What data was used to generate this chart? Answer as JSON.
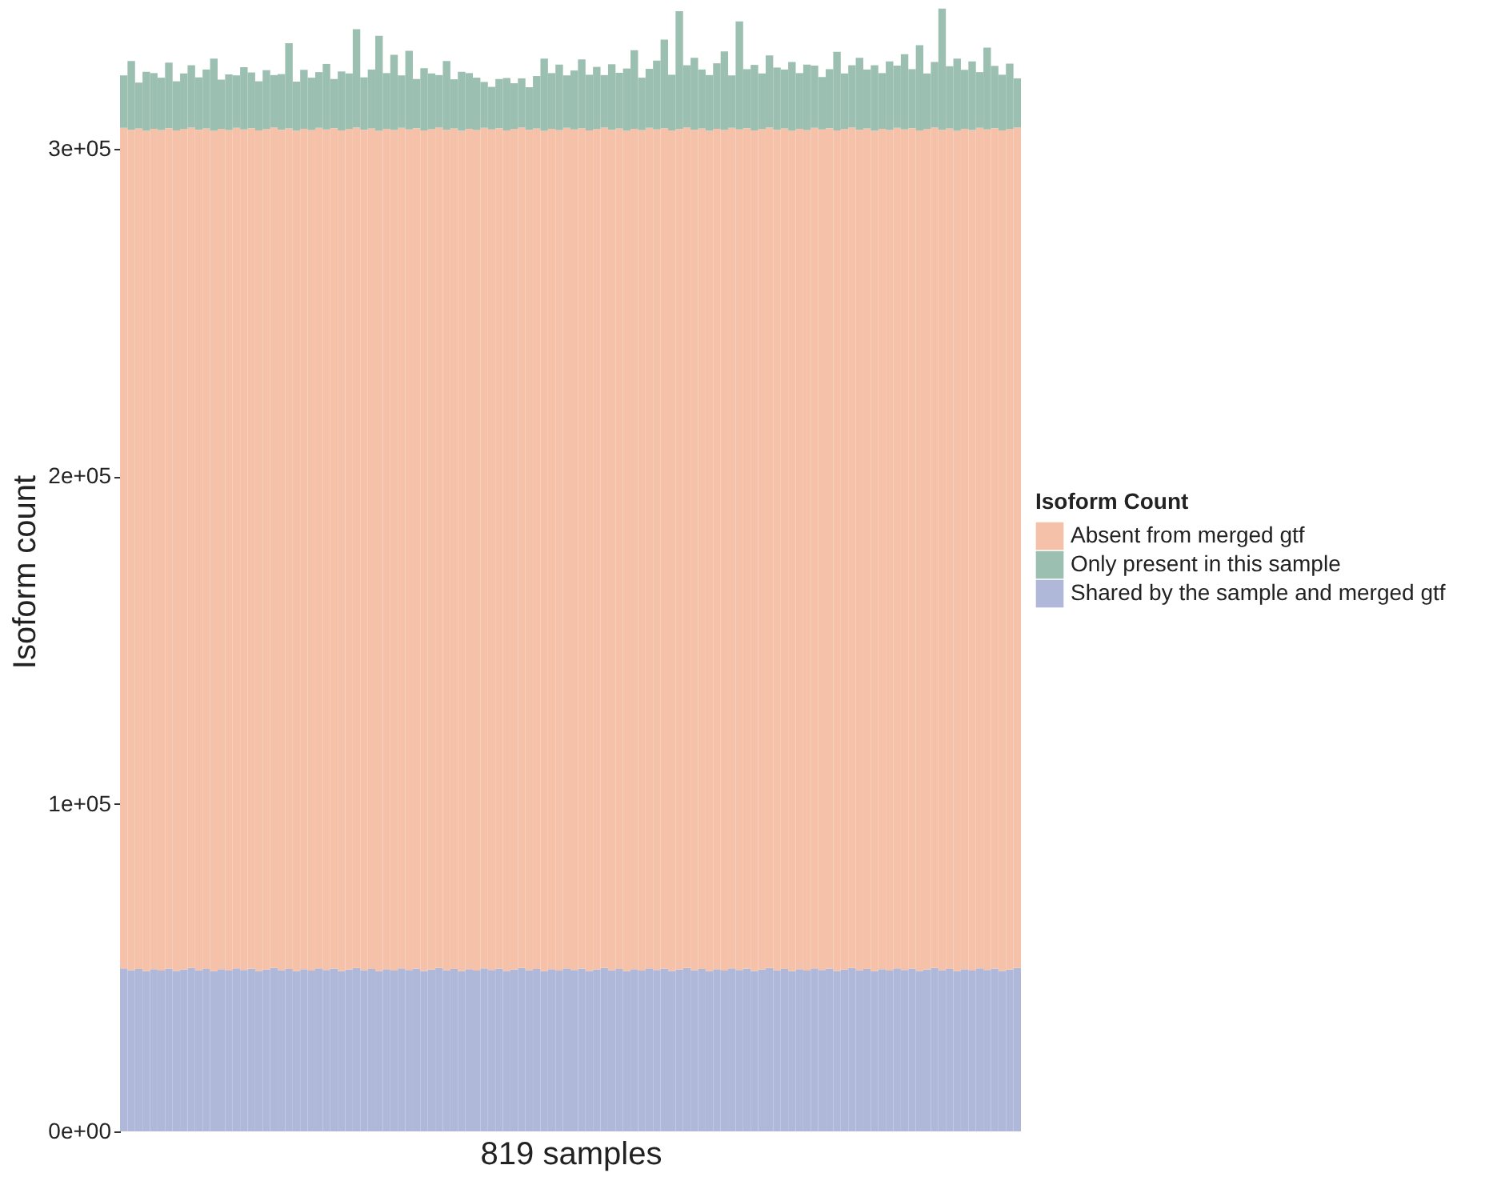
{
  "chart_data": {
    "type": "bar",
    "stacked": true,
    "xlabel": "819 samples",
    "ylabel": "Isoform count",
    "legend_title": "Isoform Count",
    "legend": "right",
    "grid": false,
    "categories": [
      null,
      null,
      null,
      null,
      null,
      null,
      null,
      null,
      null,
      null,
      null,
      null,
      null,
      null,
      null,
      null,
      null,
      null,
      null,
      null,
      null,
      null,
      null,
      null,
      null,
      null,
      null,
      null,
      null,
      null,
      null,
      null,
      null,
      null,
      null,
      null,
      null,
      null,
      null,
      null,
      null,
      null,
      null,
      null,
      null,
      null,
      null,
      null,
      null,
      null,
      null,
      null,
      null,
      null,
      null,
      null,
      null,
      null,
      null,
      null,
      null,
      null,
      null,
      null,
      null,
      null,
      null,
      null,
      null,
      null,
      null,
      null,
      null,
      null,
      null,
      null,
      null,
      null,
      null,
      null,
      null,
      null,
      null,
      null,
      null,
      null,
      null,
      null,
      null,
      null,
      null,
      null,
      null,
      null,
      null,
      null,
      null,
      null,
      null,
      null,
      null,
      null,
      null,
      null,
      null,
      null,
      null,
      null,
      null,
      null,
      null,
      null,
      null,
      null,
      null,
      null,
      null,
      null,
      null,
      null
    ],
    "ylim": [
      0,
      342000
    ],
    "yticks": [
      {
        "value": 0,
        "label": "0e+00"
      },
      {
        "value": 100000,
        "label": "1e+05"
      },
      {
        "value": 200000,
        "label": "2e+05"
      },
      {
        "value": 300000,
        "label": "3e+05"
      }
    ],
    "series": [
      {
        "name": "Shared by the sample and merged gtf",
        "color": "#b0b8da",
        "values": [
          49800,
          49200,
          49600,
          48900,
          49500,
          49100,
          49700,
          49000,
          49400,
          49900,
          49200,
          49600,
          48900,
          49500,
          49100,
          49800,
          49300,
          49700,
          49000,
          49400,
          49900,
          49200,
          49600,
          48900,
          49500,
          49100,
          49800,
          49300,
          49700,
          49000,
          49400,
          49900,
          49200,
          49600,
          48900,
          49500,
          49100,
          49800,
          49300,
          49700,
          49000,
          49400,
          49900,
          49200,
          49600,
          48900,
          49500,
          49100,
          49800,
          49300,
          49700,
          49000,
          49400,
          49900,
          49200,
          49600,
          48900,
          49500,
          49100,
          49800,
          49300,
          49700,
          49000,
          49400,
          49900,
          49200,
          49600,
          48900,
          49500,
          49100,
          49800,
          49300,
          49700,
          49000,
          49400,
          49900,
          49200,
          49600,
          48900,
          49500,
          49100,
          49800,
          49300,
          49700,
          49000,
          49400,
          49900,
          49200,
          49600,
          48900,
          49500,
          49100,
          49800,
          49300,
          49700,
          49000,
          49400,
          49900,
          49200,
          49600,
          48900,
          49500,
          49100,
          49800,
          49300,
          49700,
          49000,
          49400,
          49900,
          49200,
          49600,
          48900,
          49500,
          49100,
          49800,
          49300,
          49700,
          49000,
          49400,
          49900
        ]
      },
      {
        "name": "Absent from merged gtf",
        "color": "#f5c2a9",
        "values": [
          256600,
          256600,
          256600,
          256600,
          256600,
          256600,
          256600,
          256600,
          256600,
          256600,
          256600,
          256600,
          256600,
          256600,
          256600,
          256600,
          256600,
          256600,
          256600,
          256600,
          256600,
          256600,
          256600,
          256600,
          256600,
          256600,
          256600,
          256600,
          256600,
          256600,
          256600,
          256600,
          256600,
          256600,
          256600,
          256600,
          256600,
          256600,
          256600,
          256600,
          256600,
          256600,
          256600,
          256600,
          256600,
          256600,
          256600,
          256600,
          256600,
          256600,
          256600,
          256600,
          256600,
          256600,
          256600,
          256600,
          256600,
          256600,
          256600,
          256600,
          256600,
          256600,
          256600,
          256600,
          256600,
          256600,
          256600,
          256600,
          256600,
          256600,
          256600,
          256600,
          256600,
          256600,
          256600,
          256600,
          256600,
          256600,
          256600,
          256600,
          256600,
          256600,
          256600,
          256600,
          256600,
          256600,
          256600,
          256600,
          256600,
          256600,
          256600,
          256600,
          256600,
          256600,
          256600,
          256600,
          256600,
          256600,
          256600,
          256600,
          256600,
          256600,
          256600,
          256600,
          256600,
          256600,
          256600,
          256600,
          256600,
          256600,
          256600,
          256600,
          256600,
          256600,
          256600,
          256600,
          256600,
          256600,
          256600,
          256600
        ]
      },
      {
        "name": "Only present in this sample",
        "color": "#9bbfb0",
        "values": [
          16000,
          21000,
          14000,
          18000,
          17000,
          16000,
          20000,
          15000,
          17000,
          19000,
          16000,
          18000,
          22000,
          15000,
          17000,
          16000,
          19000,
          17000,
          15000,
          18000,
          16000,
          17000,
          26000,
          15000,
          18000,
          16000,
          17000,
          20000,
          15000,
          18000,
          17000,
          30000,
          16000,
          18000,
          29000,
          17000,
          23000,
          16000,
          24000,
          15000,
          19000,
          17000,
          16000,
          21000,
          15000,
          18000,
          17000,
          16000,
          14000,
          13000,
          15000,
          16000,
          14000,
          15000,
          13000,
          16000,
          22000,
          17000,
          20000,
          16000,
          18000,
          21000,
          17000,
          19000,
          16000,
          20000,
          17000,
          19000,
          24000,
          16000,
          18000,
          21000,
          27000,
          17000,
          36000,
          19000,
          22000,
          18000,
          17000,
          20000,
          24000,
          16000,
          33000,
          18000,
          20000,
          17000,
          22000,
          19000,
          18000,
          21000,
          17000,
          20000,
          19000,
          16000,
          18000,
          24000,
          17000,
          19000,
          22000,
          18000,
          20000,
          17000,
          21000,
          19000,
          23000,
          18000,
          26000,
          17000,
          20000,
          37000,
          19000,
          22000,
          18000,
          21000,
          17000,
          25000,
          19000,
          17000,
          20000,
          15000
        ]
      }
    ]
  }
}
